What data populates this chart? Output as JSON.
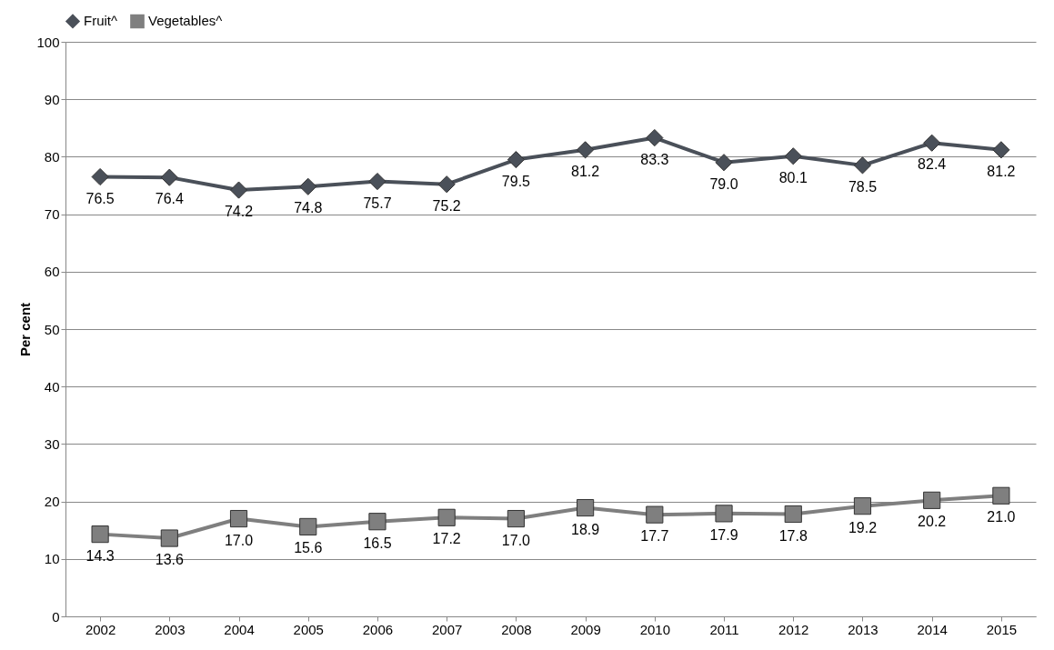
{
  "chart_data": {
    "type": "line",
    "ylabel": "Per cent",
    "categories": [
      "2002",
      "2003",
      "2004",
      "2005",
      "2006",
      "2007",
      "2008",
      "2009",
      "2010",
      "2011",
      "2012",
      "2013",
      "2014",
      "2015"
    ],
    "series": [
      {
        "name": "Fruit^",
        "color": "#4a5059",
        "marker": "diamond",
        "values": [
          76.5,
          76.4,
          74.2,
          74.8,
          75.7,
          75.2,
          79.5,
          81.2,
          83.3,
          79.0,
          80.1,
          78.5,
          82.4,
          81.2
        ],
        "value_labels": [
          "76.5",
          "76.4",
          "74.2",
          "74.8",
          "75.7",
          "75.2",
          "79.5",
          "81.2",
          "83.3",
          "79.0",
          "80.1",
          "78.5",
          "82.4",
          "81.2"
        ]
      },
      {
        "name": "Vegetables^",
        "color": "#7f7f7f",
        "marker": "square",
        "values": [
          14.3,
          13.6,
          17.0,
          15.6,
          16.5,
          17.2,
          17.0,
          18.9,
          17.7,
          17.9,
          17.8,
          19.2,
          20.2,
          21.0
        ],
        "value_labels": [
          "14.3",
          "13.6",
          "17.0",
          "15.6",
          "16.5",
          "17.2",
          "17.0",
          "18.9",
          "17.7",
          "17.9",
          "17.8",
          "19.2",
          "20.2",
          "21.0"
        ]
      }
    ],
    "ylim": [
      0,
      100
    ],
    "yticks": [
      0,
      10,
      20,
      30,
      40,
      50,
      60,
      70,
      80,
      90,
      100
    ],
    "grid": "y",
    "legend": "top",
    "line_style": "solid"
  }
}
